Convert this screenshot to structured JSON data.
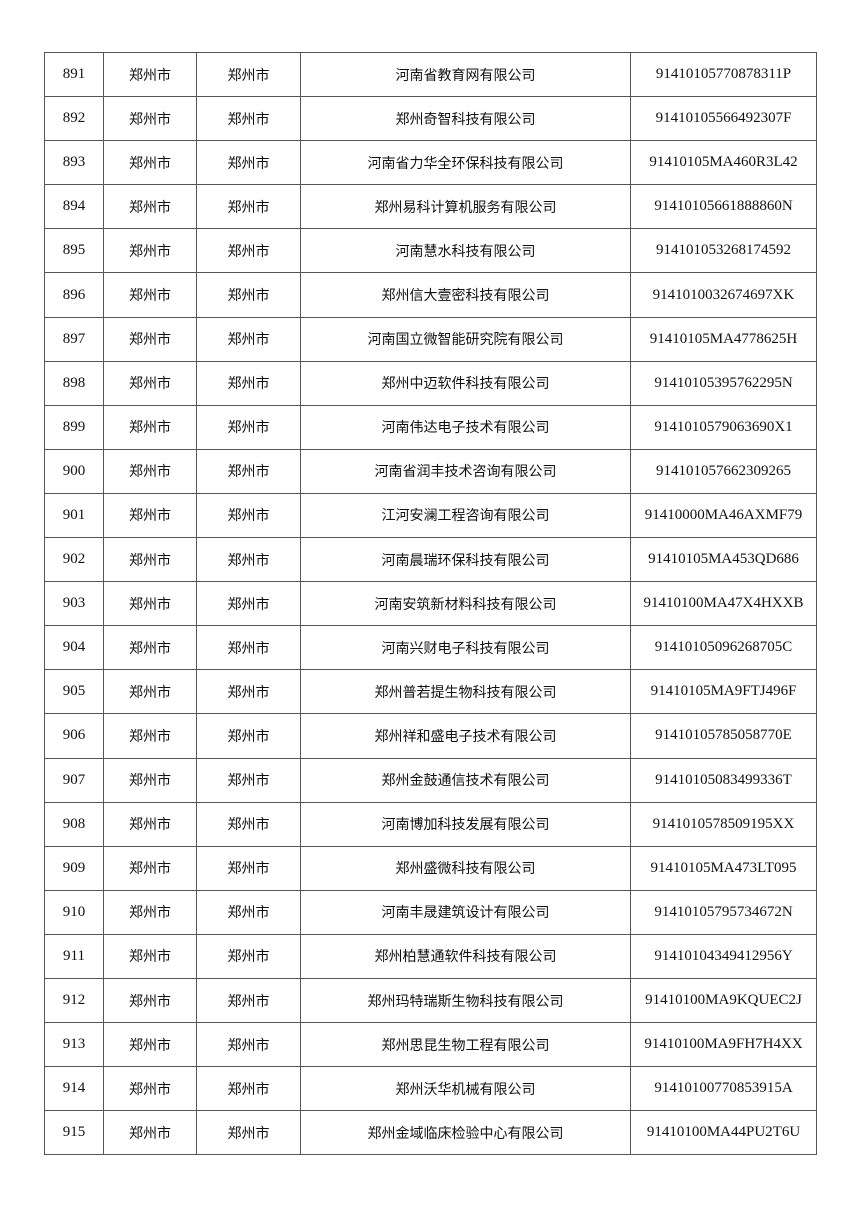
{
  "rows": [
    {
      "no": "891",
      "city": "郑州市",
      "district": "郑州市",
      "company": "河南省教育网有限公司",
      "code": "91410105770878311P"
    },
    {
      "no": "892",
      "city": "郑州市",
      "district": "郑州市",
      "company": "郑州奇智科技有限公司",
      "code": "91410105566492307F"
    },
    {
      "no": "893",
      "city": "郑州市",
      "district": "郑州市",
      "company": "河南省力华全环保科技有限公司",
      "code": "91410105MA460R3L42"
    },
    {
      "no": "894",
      "city": "郑州市",
      "district": "郑州市",
      "company": "郑州易科计算机服务有限公司",
      "code": "91410105661888860N"
    },
    {
      "no": "895",
      "city": "郑州市",
      "district": "郑州市",
      "company": "河南慧水科技有限公司",
      "code": "914101053268174592"
    },
    {
      "no": "896",
      "city": "郑州市",
      "district": "郑州市",
      "company": "郑州信大壹密科技有限公司",
      "code": "9141010032674697XK"
    },
    {
      "no": "897",
      "city": "郑州市",
      "district": "郑州市",
      "company": "河南国立微智能研究院有限公司",
      "code": "91410105MA4778625H"
    },
    {
      "no": "898",
      "city": "郑州市",
      "district": "郑州市",
      "company": "郑州中迈软件科技有限公司",
      "code": "91410105395762295N"
    },
    {
      "no": "899",
      "city": "郑州市",
      "district": "郑州市",
      "company": "河南伟达电子技术有限公司",
      "code": "9141010579063690X1"
    },
    {
      "no": "900",
      "city": "郑州市",
      "district": "郑州市",
      "company": "河南省润丰技术咨询有限公司",
      "code": "914101057662309265"
    },
    {
      "no": "901",
      "city": "郑州市",
      "district": "郑州市",
      "company": "江河安澜工程咨询有限公司",
      "code": "91410000MA46AXMF79"
    },
    {
      "no": "902",
      "city": "郑州市",
      "district": "郑州市",
      "company": "河南晨瑞环保科技有限公司",
      "code": "91410105MA453QD686"
    },
    {
      "no": "903",
      "city": "郑州市",
      "district": "郑州市",
      "company": "河南安筑新材料科技有限公司",
      "code": "91410100MA47X4HXXB"
    },
    {
      "no": "904",
      "city": "郑州市",
      "district": "郑州市",
      "company": "河南兴财电子科技有限公司",
      "code": "91410105096268705C"
    },
    {
      "no": "905",
      "city": "郑州市",
      "district": "郑州市",
      "company": "郑州普若提生物科技有限公司",
      "code": "91410105MA9FTJ496F"
    },
    {
      "no": "906",
      "city": "郑州市",
      "district": "郑州市",
      "company": "郑州祥和盛电子技术有限公司",
      "code": "91410105785058770E"
    },
    {
      "no": "907",
      "city": "郑州市",
      "district": "郑州市",
      "company": "郑州金鼓通信技术有限公司",
      "code": "91410105083499336T"
    },
    {
      "no": "908",
      "city": "郑州市",
      "district": "郑州市",
      "company": "河南博加科技发展有限公司",
      "code": "9141010578509195XX"
    },
    {
      "no": "909",
      "city": "郑州市",
      "district": "郑州市",
      "company": "郑州盛微科技有限公司",
      "code": "91410105MA473LT095"
    },
    {
      "no": "910",
      "city": "郑州市",
      "district": "郑州市",
      "company": "河南丰晟建筑设计有限公司",
      "code": "91410105795734672N"
    },
    {
      "no": "911",
      "city": "郑州市",
      "district": "郑州市",
      "company": "郑州柏慧通软件科技有限公司",
      "code": "91410104349412956Y"
    },
    {
      "no": "912",
      "city": "郑州市",
      "district": "郑州市",
      "company": "郑州玛特瑞斯生物科技有限公司",
      "code": "91410100MA9KQUEC2J"
    },
    {
      "no": "913",
      "city": "郑州市",
      "district": "郑州市",
      "company": "郑州思昆生物工程有限公司",
      "code": "91410100MA9FH7H4XX"
    },
    {
      "no": "914",
      "city": "郑州市",
      "district": "郑州市",
      "company": "郑州沃华机械有限公司",
      "code": "91410100770853915A"
    },
    {
      "no": "915",
      "city": "郑州市",
      "district": "郑州市",
      "company": "郑州金域临床检验中心有限公司",
      "code": "91410100MA44PU2T6U"
    }
  ]
}
